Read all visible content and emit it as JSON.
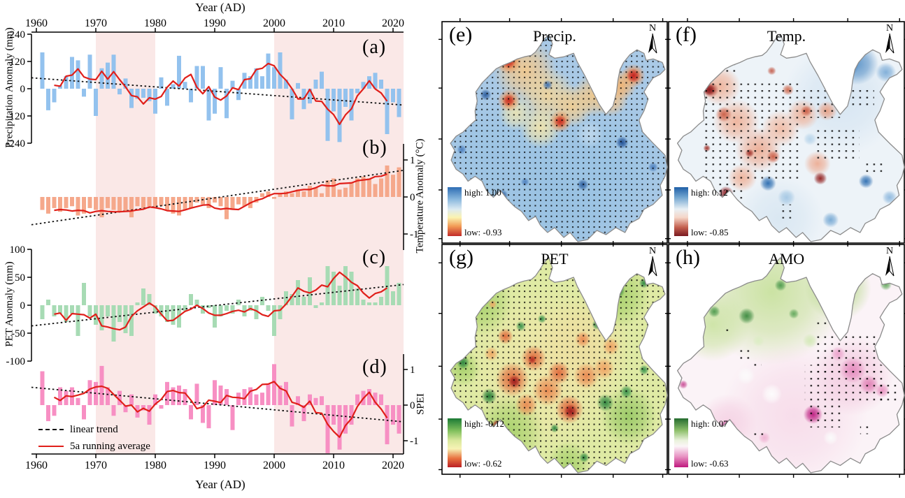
{
  "x_axis": {
    "title": "Year (AD)",
    "ticks": [
      1960,
      1970,
      1980,
      1990,
      2000,
      2010,
      2020
    ],
    "range": [
      1959,
      2022
    ]
  },
  "legend": {
    "linear_trend": "linear trend",
    "running_avg": "5a running average"
  },
  "shaded_periods": [
    [
      1970,
      1980
    ],
    [
      2000,
      2022
    ]
  ],
  "north_label": "N",
  "chart_data": [
    {
      "type": "bar",
      "id": "a",
      "label": "(a)",
      "ylabel": "Precipitation Anomaly (mm)",
      "axis_side": "left",
      "yticks": [
        240,
        120,
        0,
        -120,
        -240
      ],
      "ylim": [
        -240,
        240
      ],
      "x_start": 1961,
      "x_end": 2021,
      "bar_color": "#93c2ee",
      "trend": [
        48,
        -72
      ],
      "values": [
        160,
        -95,
        -60,
        15,
        55,
        140,
        125,
        -35,
        150,
        -120,
        90,
        115,
        150,
        -25,
        45,
        -85,
        -45,
        -40,
        -55,
        -110,
        50,
        -75,
        20,
        145,
        30,
        -60,
        100,
        100,
        -140,
        -110,
        95,
        -130,
        35,
        -50,
        70,
        55,
        90,
        55,
        155,
        95,
        160,
        40,
        -135,
        25,
        -90,
        -65,
        40,
        75,
        -230,
        -100,
        -235,
        -80,
        -140,
        -20,
        30,
        55,
        70,
        40,
        -200,
        -60,
        -125
      ]
    },
    {
      "type": "bar",
      "id": "b",
      "label": "(b)",
      "ylabel": "Temperature Anomaly (°C)",
      "axis_side": "right",
      "yticks": [
        1,
        0,
        -1
      ],
      "ylim": [
        -1.43,
        1.43
      ],
      "x_start": 1961,
      "x_end": 2021,
      "bar_color": "#f5a88b",
      "trend": [
        -0.75,
        0.72
      ],
      "values": [
        -0.35,
        -0.45,
        -0.3,
        -0.4,
        -0.3,
        -0.25,
        -0.5,
        -0.45,
        -0.3,
        -0.35,
        -0.55,
        -0.3,
        -0.35,
        -0.4,
        -0.4,
        -0.55,
        -0.25,
        -0.3,
        -0.25,
        -0.3,
        -0.25,
        -0.35,
        -0.45,
        -0.5,
        -0.35,
        -0.3,
        -0.15,
        -0.2,
        -0.3,
        -0.15,
        -0.25,
        -0.6,
        -0.35,
        -0.2,
        -0.25,
        -0.3,
        -0.15,
        0.1,
        0.15,
        -0.05,
        0.1,
        0.15,
        0.1,
        0.2,
        0.15,
        0.3,
        0.25,
        0.1,
        0.45,
        0.5,
        0.2,
        0.25,
        0.4,
        0.5,
        0.55,
        0.5,
        0.35,
        0.5,
        0.85,
        0.6,
        0.8
      ]
    },
    {
      "type": "bar",
      "id": "c",
      "label": "(c)",
      "ylabel": "PET Anomaly (mm)",
      "axis_side": "left",
      "yticks": [
        100,
        50,
        0,
        -50,
        -100
      ],
      "ylim": [
        -100,
        100
      ],
      "x_start": 1961,
      "x_end": 2021,
      "bar_color": "#a7dbb4",
      "trend": [
        -37,
        37
      ],
      "values": [
        -25,
        10,
        -20,
        -15,
        -30,
        -15,
        -55,
        40,
        -20,
        -35,
        -45,
        -20,
        -65,
        -30,
        -50,
        -55,
        5,
        30,
        20,
        -15,
        -20,
        -30,
        -35,
        -40,
        -10,
        20,
        10,
        -15,
        -5,
        -40,
        -20,
        -10,
        -15,
        10,
        -20,
        -10,
        -25,
        15,
        -10,
        -55,
        -25,
        25,
        20,
        45,
        15,
        50,
        -5,
        5,
        70,
        60,
        35,
        70,
        60,
        30,
        10,
        5,
        5,
        15,
        70,
        25,
        40
      ]
    },
    {
      "type": "bar",
      "id": "d",
      "label": "(d)",
      "ylabel": "SPEI",
      "axis_side": "right",
      "yticks": [
        1,
        0,
        -1
      ],
      "ylim": [
        -1.43,
        1.43
      ],
      "x_start": 1961,
      "x_end": 2021,
      "bar_color": "#f78fc3",
      "trend": [
        0.5,
        -0.47
      ],
      "values": [
        0.95,
        -0.45,
        -0.3,
        0.5,
        0.4,
        0.5,
        0.2,
        -0.4,
        0.7,
        0.65,
        1.1,
        0.5,
        -0.3,
        0.4,
        -0.2,
        0.3,
        -0.35,
        -0.15,
        -0.55,
        0.3,
        -0.1,
        0.65,
        0.5,
        0.55,
        0.45,
        -0.4,
        0.6,
        -0.5,
        -0.65,
        0.7,
        0.55,
        0.45,
        -0.7,
        0.35,
        0.45,
        0.5,
        0.3,
        0.35,
        0.6,
        1.15,
        0.55,
        0.65,
        -0.6,
        0.25,
        -0.45,
        0.3,
        0.2,
        0.25,
        -1.35,
        -0.55,
        -1.25,
        -0.8,
        -0.55,
        0.3,
        0.4,
        0.45,
        0.35,
        0.3,
        -1.1,
        -0.55,
        -0.8
      ]
    },
    {
      "type": "map",
      "id": "e",
      "label": "(e)",
      "title": "Precip.",
      "high_label": "high: 1.00",
      "low_label": "low: -0.93",
      "high": 1.0,
      "low": -0.93,
      "colorbar": [
        [
          0,
          "#2e6db4"
        ],
        [
          0.25,
          "#8bb9de"
        ],
        [
          0.45,
          "#dceaf2"
        ],
        [
          0.62,
          "#fbf3b0"
        ],
        [
          0.8,
          "#f29a55"
        ],
        [
          1,
          "#c22b29"
        ]
      ]
    },
    {
      "type": "map",
      "id": "f",
      "label": "(f)",
      "title": "Temp.",
      "high_label": "high: 0.12",
      "low_label": "low: -0.85",
      "high": 0.12,
      "low": -0.85,
      "colorbar": [
        [
          0,
          "#1f5fa7"
        ],
        [
          0.2,
          "#6fa3cf"
        ],
        [
          0.45,
          "#e9f0f5"
        ],
        [
          0.62,
          "#f5d6c8"
        ],
        [
          0.82,
          "#c4604f"
        ],
        [
          1,
          "#7a1a20"
        ]
      ]
    },
    {
      "type": "map",
      "id": "g",
      "label": "(g)",
      "title": "PET",
      "high_label": "high: -0.12",
      "low_label": "low: -0.62",
      "high": -0.12,
      "low": -0.62,
      "colorbar": [
        [
          0,
          "#1b7a35"
        ],
        [
          0.25,
          "#7fbf5c"
        ],
        [
          0.45,
          "#d9e89c"
        ],
        [
          0.62,
          "#f7f3b5"
        ],
        [
          0.82,
          "#e8713f"
        ],
        [
          1,
          "#bb1f24"
        ]
      ]
    },
    {
      "type": "map",
      "id": "h",
      "label": "(h)",
      "title": "AMO",
      "high_label": "high: 0.07",
      "low_label": "low: -0.63",
      "high": 0.07,
      "low": -0.63,
      "colorbar": [
        [
          0,
          "#246b2e"
        ],
        [
          0.25,
          "#8fc06c"
        ],
        [
          0.45,
          "#eaf2dc"
        ],
        [
          0.57,
          "#fbf5f8"
        ],
        [
          0.78,
          "#e893c3"
        ],
        [
          1,
          "#c0197e"
        ]
      ]
    }
  ]
}
